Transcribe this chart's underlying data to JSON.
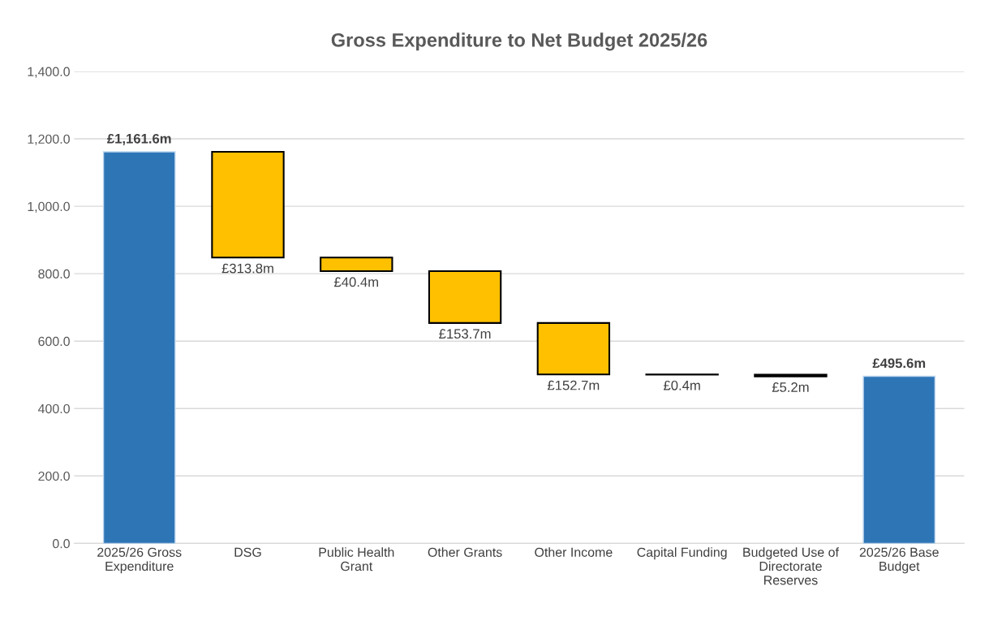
{
  "chart_data": {
    "type": "bar",
    "title": "Gross Expenditure to Net Budget 2025/26",
    "categories": [
      "2025/26 Gross\nExpenditure",
      "DSG",
      "Public Health\nGrant",
      "Other Grants",
      "Other Income",
      "Capital Funding",
      "Budgeted Use of\nDirectorate\nReserves",
      "2025/26 Base\nBudget"
    ],
    "values": [
      1161.6,
      313.8,
      40.4,
      153.7,
      152.7,
      0.4,
      5.2,
      495.6
    ],
    "base": [
      0,
      847.8,
      807.4,
      653.7,
      501.0,
      500.6,
      495.4,
      0
    ],
    "colors": [
      "#2e75b6",
      "#ffc000",
      "#ffc000",
      "#ffc000",
      "#ffc000",
      "#ffc000",
      "#ffc000",
      "#2e75b6"
    ],
    "value_labels": [
      "£1,161.6m",
      "£313.8m",
      "£40.4m",
      "£153.7m",
      "£152.7m",
      "£0.4m",
      "£5.2m",
      "£495.6m"
    ],
    "ylim": [
      0,
      1400
    ],
    "yticks": [
      {
        "value": 0,
        "label": "0.0"
      },
      {
        "value": 200,
        "label": "200.0"
      },
      {
        "value": 400,
        "label": "400.0"
      },
      {
        "value": 600,
        "label": "600.0"
      },
      {
        "value": 800,
        "label": "800.0"
      },
      {
        "value": 1000,
        "label": "1,000.0"
      },
      {
        "value": 1200,
        "label": "1,200.0"
      },
      {
        "value": 1400,
        "label": "1,400.0"
      }
    ],
    "grid": "y"
  }
}
